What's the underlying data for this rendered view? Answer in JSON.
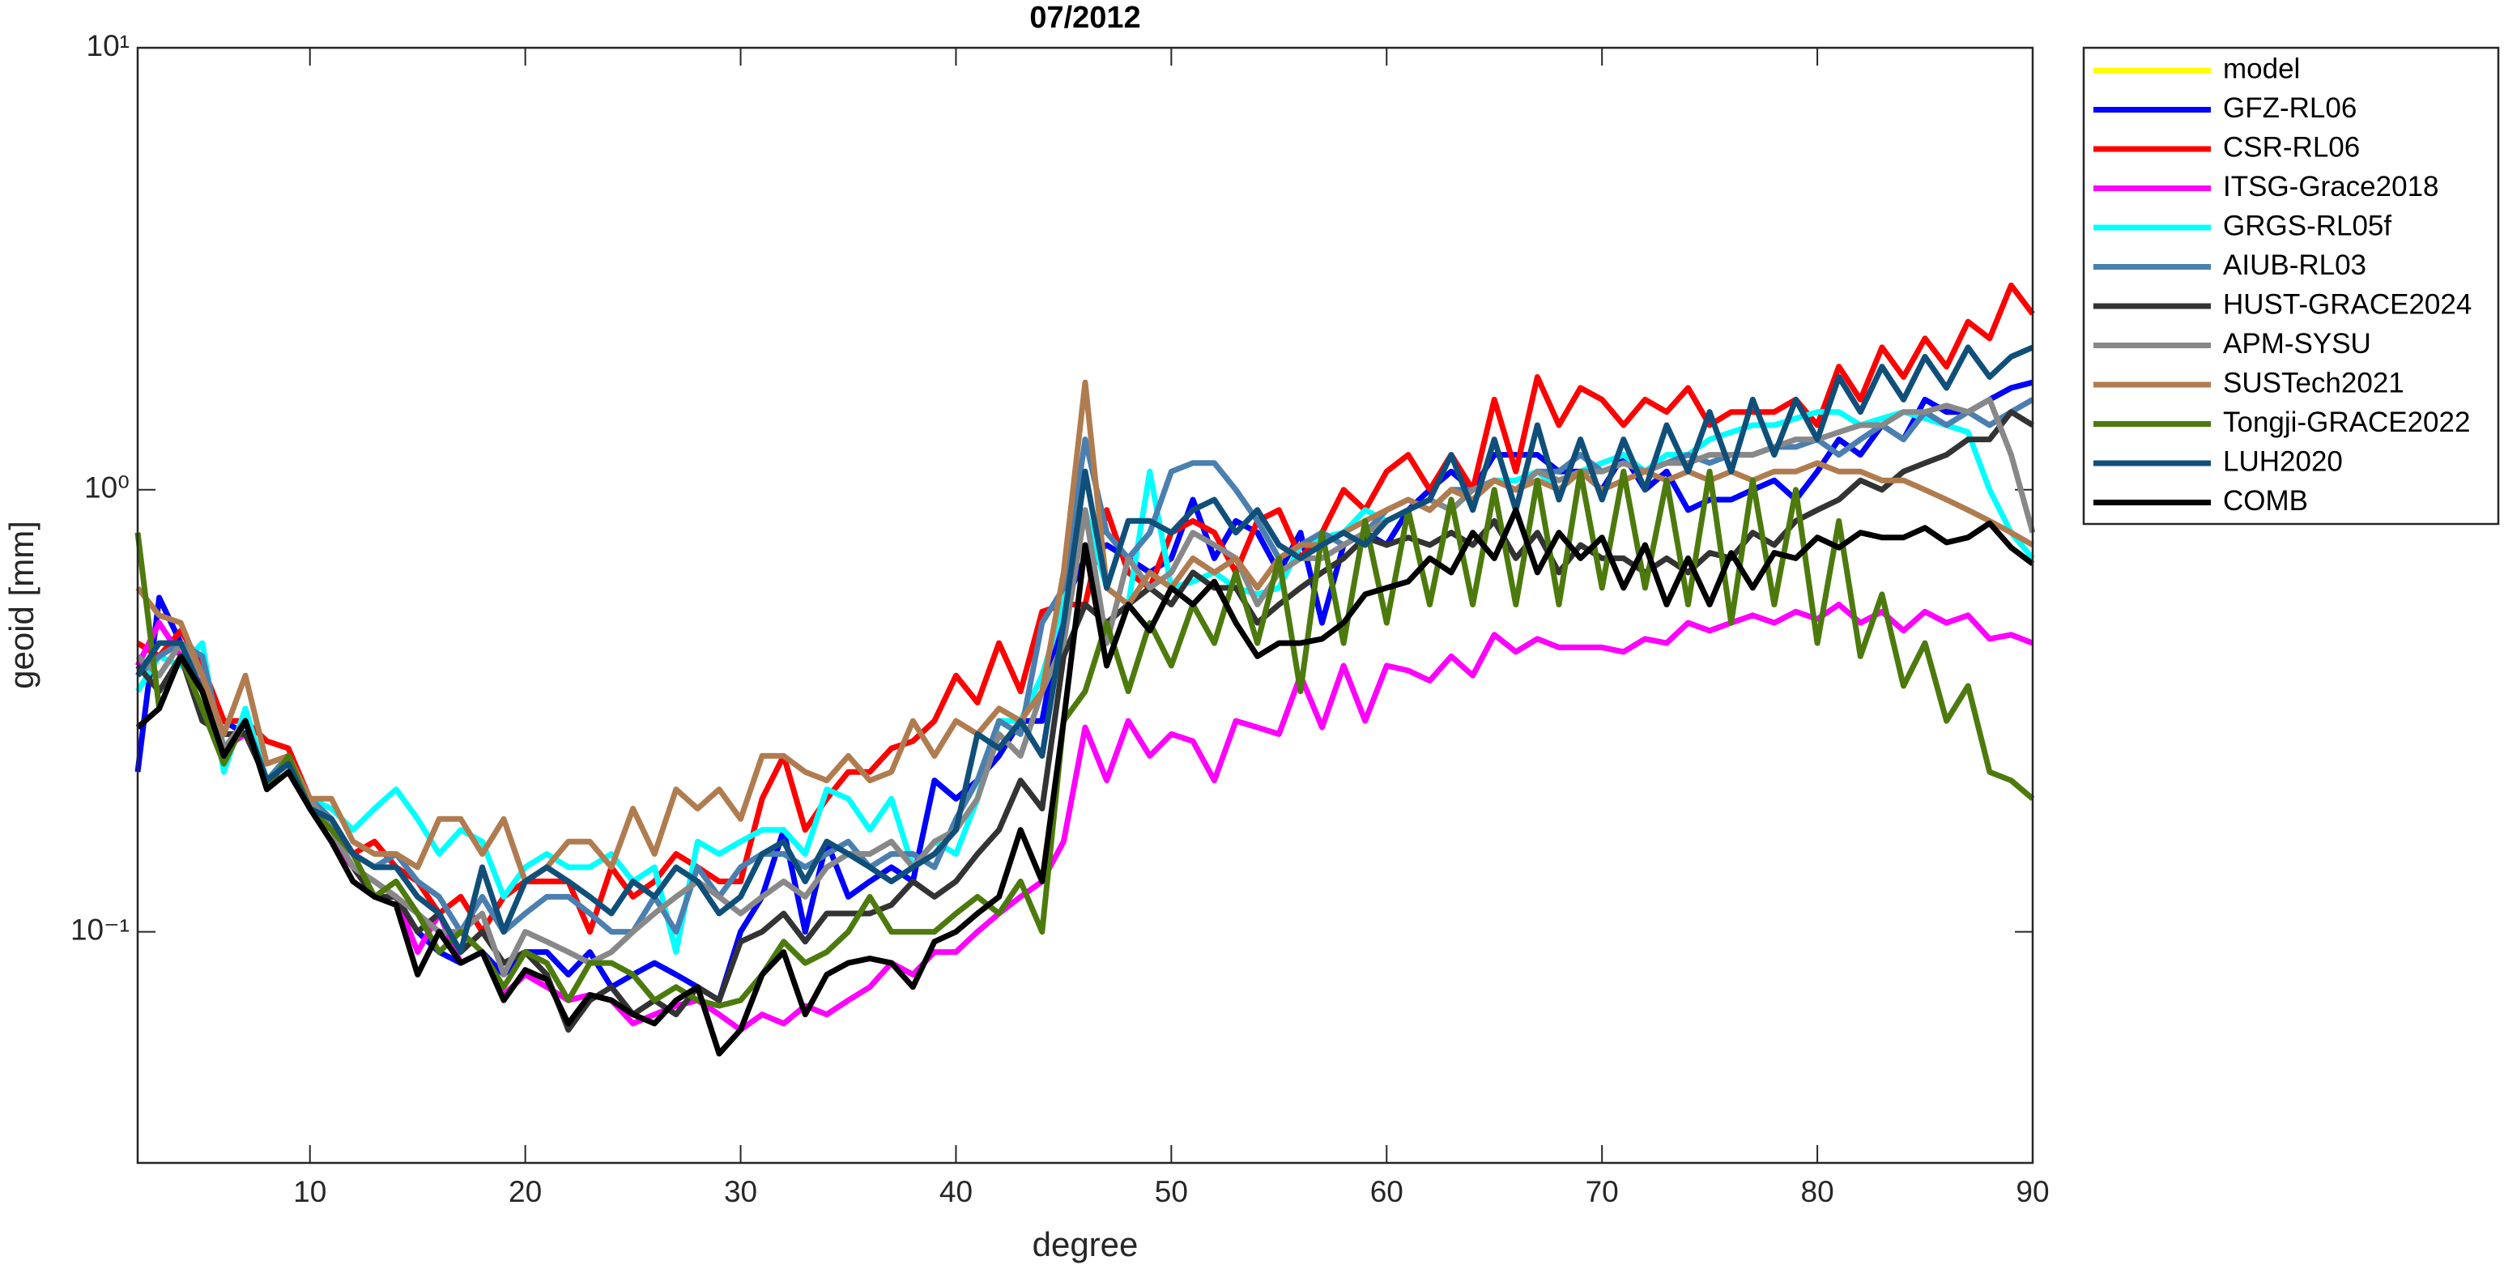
{
  "chart_data": {
    "type": "line",
    "title": "07/2012",
    "xlabel": "degree",
    "ylabel": "geoid [mm]",
    "log_y": true,
    "grid": false,
    "legend": "outside-right-top",
    "xlim": [
      2,
      90
    ],
    "xticks": [
      10,
      20,
      30,
      40,
      50,
      60,
      70,
      80,
      90
    ],
    "ylim": [
      0.03,
      10
    ],
    "yticks": [
      {
        "value": 0.1,
        "label": "10⁻¹"
      },
      {
        "value": 1,
        "label": "10⁰"
      },
      {
        "value": 10,
        "label": "10¹"
      }
    ],
    "x": [
      2,
      3,
      4,
      5,
      6,
      7,
      8,
      9,
      10,
      11,
      12,
      13,
      14,
      15,
      16,
      17,
      18,
      19,
      20,
      21,
      22,
      23,
      24,
      25,
      26,
      27,
      28,
      29,
      30,
      31,
      32,
      33,
      34,
      35,
      36,
      37,
      38,
      39,
      40,
      41,
      42,
      43,
      44,
      45,
      46,
      47,
      48,
      49,
      50,
      51,
      52,
      53,
      54,
      55,
      56,
      57,
      58,
      59,
      60,
      61,
      62,
      63,
      64,
      65,
      66,
      67,
      68,
      69,
      70,
      71,
      72,
      73,
      74,
      75,
      76,
      77,
      78,
      79,
      80,
      81,
      82,
      83,
      84,
      85,
      86,
      87,
      88,
      89,
      90
    ],
    "series": [
      {
        "name": "model",
        "color": "#ffff00",
        "values": [
          null,
          null,
          null,
          null,
          null,
          null,
          null,
          null,
          null,
          null,
          null,
          null,
          null,
          null,
          null,
          null,
          null,
          null,
          null,
          null,
          null,
          null,
          null,
          null,
          null,
          null,
          null,
          null,
          null,
          null,
          null,
          null,
          null,
          null,
          null,
          null,
          null,
          null,
          null,
          null,
          null,
          null,
          null,
          null,
          null,
          null,
          null,
          null,
          null,
          null,
          null,
          null,
          null,
          null,
          null,
          null,
          null,
          null,
          null,
          null,
          null,
          null,
          null,
          null,
          null,
          null,
          null,
          null,
          null,
          null,
          null,
          null,
          null,
          null,
          null,
          null,
          null,
          null,
          null,
          null,
          null,
          null,
          null,
          null,
          null,
          null,
          null,
          null,
          null
        ]
      },
      {
        "name": "GFZ-RL06",
        "color": "#0000ff",
        "values": [
          0.23,
          0.57,
          0.45,
          0.38,
          0.3,
          0.28,
          0.22,
          0.24,
          0.2,
          0.17,
          0.14,
          0.13,
          0.12,
          0.1,
          0.09,
          0.085,
          0.09,
          0.08,
          0.09,
          0.09,
          0.08,
          0.09,
          0.075,
          0.08,
          0.085,
          0.08,
          0.075,
          0.07,
          0.1,
          0.12,
          0.17,
          0.1,
          0.16,
          0.12,
          0.13,
          0.14,
          0.13,
          0.22,
          0.2,
          0.22,
          0.25,
          0.3,
          0.3,
          0.55,
          0.7,
          0.75,
          0.7,
          0.65,
          0.7,
          0.95,
          0.7,
          0.85,
          0.8,
          0.65,
          0.8,
          0.5,
          0.75,
          0.8,
          0.75,
          0.9,
          1.0,
          1.1,
          1.0,
          1.2,
          1.2,
          1.2,
          1.1,
          1.1,
          1.0,
          1.2,
          1.0,
          1.1,
          0.9,
          0.95,
          0.95,
          1.0,
          1.05,
          0.95,
          1.1,
          1.3,
          1.2,
          1.4,
          1.3,
          1.6,
          1.5,
          1.5,
          1.6,
          1.7,
          1.75
        ]
      },
      {
        "name": "CSR-RL06",
        "color": "#ff0000",
        "values": [
          0.45,
          0.42,
          0.48,
          0.4,
          0.3,
          0.3,
          0.27,
          0.26,
          0.2,
          0.18,
          0.15,
          0.16,
          0.14,
          0.13,
          0.11,
          0.12,
          0.1,
          0.12,
          0.13,
          0.13,
          0.13,
          0.1,
          0.14,
          0.12,
          0.13,
          0.15,
          0.14,
          0.13,
          0.13,
          0.2,
          0.25,
          0.17,
          0.2,
          0.23,
          0.23,
          0.26,
          0.27,
          0.3,
          0.38,
          0.33,
          0.45,
          0.35,
          0.53,
          0.55,
          0.55,
          0.9,
          0.65,
          0.6,
          0.8,
          0.85,
          0.8,
          0.65,
          0.85,
          0.9,
          0.7,
          0.8,
          1.0,
          0.9,
          1.1,
          1.2,
          1.0,
          1.2,
          1.0,
          1.6,
          1.1,
          1.8,
          1.4,
          1.7,
          1.6,
          1.4,
          1.6,
          1.5,
          1.7,
          1.4,
          1.5,
          1.5,
          1.5,
          1.6,
          1.4,
          1.9,
          1.6,
          2.1,
          1.8,
          2.2,
          1.9,
          2.4,
          2.2,
          2.9,
          2.5
        ]
      },
      {
        "name": "ITSG-Grace2018",
        "color": "#ff00ff",
        "values": [
          0.4,
          0.5,
          0.42,
          0.36,
          0.26,
          0.28,
          0.22,
          0.24,
          0.19,
          0.16,
          0.14,
          0.12,
          0.12,
          0.09,
          0.11,
          0.085,
          0.09,
          0.072,
          0.08,
          0.075,
          0.07,
          0.072,
          0.07,
          0.062,
          0.065,
          0.068,
          0.07,
          0.065,
          0.06,
          0.065,
          0.062,
          0.068,
          0.065,
          0.07,
          0.075,
          0.085,
          0.08,
          0.09,
          0.09,
          0.1,
          0.11,
          0.12,
          0.13,
          0.16,
          0.29,
          0.22,
          0.3,
          0.25,
          0.28,
          0.27,
          0.22,
          0.3,
          0.29,
          0.28,
          0.38,
          0.29,
          0.4,
          0.3,
          0.4,
          0.39,
          0.37,
          0.42,
          0.38,
          0.47,
          0.43,
          0.46,
          0.44,
          0.44,
          0.44,
          0.43,
          0.46,
          0.45,
          0.5,
          0.48,
          0.5,
          0.52,
          0.5,
          0.53,
          0.51,
          0.55,
          0.5,
          0.53,
          0.48,
          0.53,
          0.5,
          0.52,
          0.46,
          0.47,
          0.45
        ]
      },
      {
        "name": "GRGS-RL05f",
        "color": "#00ffff",
        "values": [
          0.35,
          0.42,
          0.4,
          0.45,
          0.23,
          0.32,
          0.22,
          0.25,
          0.2,
          0.19,
          0.17,
          0.19,
          0.21,
          0.18,
          0.15,
          0.17,
          0.16,
          0.12,
          0.14,
          0.15,
          0.14,
          0.14,
          0.15,
          0.13,
          0.14,
          0.09,
          0.16,
          0.15,
          0.16,
          0.17,
          0.17,
          0.15,
          0.21,
          0.2,
          0.17,
          0.2,
          0.14,
          0.16,
          0.15,
          0.2,
          0.3,
          0.3,
          0.38,
          0.55,
          0.9,
          0.6,
          0.55,
          1.1,
          0.6,
          0.62,
          0.65,
          0.6,
          0.58,
          0.6,
          0.75,
          0.78,
          0.8,
          0.9,
          0.85,
          0.9,
          0.95,
          0.9,
          1.0,
          1.05,
          1.05,
          1.1,
          1.0,
          1.1,
          1.15,
          1.2,
          1.1,
          1.2,
          1.2,
          1.3,
          1.35,
          1.4,
          1.4,
          1.45,
          1.5,
          1.5,
          1.4,
          1.45,
          1.5,
          1.45,
          1.4,
          1.35,
          1.0,
          0.8,
          0.7
        ]
      },
      {
        "name": "AIUB-RL03",
        "color": "#4a7fb0",
        "values": [
          0.38,
          0.42,
          0.45,
          0.42,
          0.26,
          0.3,
          0.22,
          0.25,
          0.2,
          0.18,
          0.15,
          0.14,
          0.15,
          0.13,
          0.12,
          0.1,
          0.12,
          0.1,
          0.11,
          0.12,
          0.12,
          0.11,
          0.1,
          0.1,
          0.12,
          0.1,
          0.14,
          0.12,
          0.14,
          0.15,
          0.15,
          0.14,
          0.15,
          0.16,
          0.14,
          0.15,
          0.15,
          0.14,
          0.18,
          0.22,
          0.3,
          0.28,
          0.5,
          0.6,
          1.3,
          0.8,
          0.7,
          0.8,
          1.1,
          1.15,
          1.15,
          1.0,
          0.85,
          0.7,
          0.75,
          0.8,
          0.75,
          0.8,
          0.9,
          0.95,
          0.9,
          1.0,
          1.0,
          1.05,
          1.0,
          1.1,
          1.1,
          1.2,
          1.1,
          1.15,
          1.1,
          1.15,
          1.2,
          1.15,
          1.2,
          1.2,
          1.25,
          1.25,
          1.3,
          1.2,
          1.3,
          1.4,
          1.3,
          1.5,
          1.4,
          1.5,
          1.4,
          1.5,
          1.6
        ]
      },
      {
        "name": "HUST-GRACE2024",
        "color": "#333333",
        "values": [
          0.4,
          0.35,
          0.42,
          0.3,
          0.28,
          0.28,
          0.22,
          0.24,
          0.19,
          0.17,
          0.14,
          0.12,
          0.12,
          0.1,
          0.11,
          0.09,
          0.1,
          0.085,
          0.09,
          0.08,
          0.06,
          0.07,
          0.075,
          0.065,
          0.07,
          0.065,
          0.075,
          0.07,
          0.095,
          0.1,
          0.11,
          0.095,
          0.11,
          0.11,
          0.11,
          0.115,
          0.13,
          0.12,
          0.13,
          0.15,
          0.17,
          0.22,
          0.19,
          0.42,
          0.55,
          0.5,
          0.55,
          0.6,
          0.55,
          0.65,
          0.6,
          0.6,
          0.5,
          0.55,
          0.6,
          0.65,
          0.7,
          0.78,
          0.75,
          0.78,
          0.75,
          0.8,
          0.75,
          0.85,
          0.7,
          0.8,
          0.65,
          0.75,
          0.7,
          0.7,
          0.65,
          0.7,
          0.65,
          0.72,
          0.7,
          0.8,
          0.75,
          0.85,
          0.9,
          0.95,
          1.05,
          1.0,
          1.1,
          1.15,
          1.2,
          1.3,
          1.3,
          1.5,
          1.4
        ]
      },
      {
        "name": "APM-SYSU",
        "color": "#888888",
        "values": [
          0.42,
          0.38,
          0.45,
          0.38,
          0.26,
          0.3,
          0.22,
          0.24,
          0.2,
          0.17,
          0.14,
          0.13,
          0.12,
          0.11,
          0.1,
          0.1,
          0.11,
          0.08,
          0.1,
          0.095,
          0.09,
          0.085,
          0.09,
          0.1,
          0.11,
          0.12,
          0.13,
          0.12,
          0.11,
          0.12,
          0.13,
          0.12,
          0.14,
          0.15,
          0.15,
          0.16,
          0.14,
          0.16,
          0.17,
          0.2,
          0.28,
          0.25,
          0.35,
          0.45,
          0.9,
          0.45,
          0.7,
          0.6,
          0.65,
          0.8,
          0.75,
          0.7,
          0.55,
          0.65,
          0.7,
          0.7,
          0.75,
          0.8,
          0.85,
          0.9,
          0.95,
          0.9,
          1.0,
          1.05,
          1.0,
          1.1,
          1.05,
          1.1,
          1.1,
          1.15,
          1.1,
          1.15,
          1.15,
          1.2,
          1.2,
          1.2,
          1.25,
          1.3,
          1.3,
          1.35,
          1.4,
          1.4,
          1.5,
          1.5,
          1.55,
          1.5,
          1.6,
          1.2,
          0.8
        ]
      },
      {
        "name": "SUSTech2021",
        "color": "#b07c4f",
        "values": [
          0.6,
          0.52,
          0.5,
          0.38,
          0.28,
          0.38,
          0.24,
          0.25,
          0.2,
          0.2,
          0.16,
          0.15,
          0.15,
          0.14,
          0.18,
          0.18,
          0.15,
          0.18,
          0.13,
          0.14,
          0.16,
          0.16,
          0.14,
          0.19,
          0.15,
          0.21,
          0.19,
          0.21,
          0.18,
          0.25,
          0.25,
          0.23,
          0.22,
          0.25,
          0.22,
          0.23,
          0.3,
          0.25,
          0.3,
          0.28,
          0.32,
          0.3,
          0.35,
          0.65,
          1.75,
          0.6,
          0.55,
          0.65,
          0.6,
          0.7,
          0.65,
          0.7,
          0.6,
          0.7,
          0.75,
          0.75,
          0.8,
          0.85,
          0.9,
          0.95,
          0.9,
          1.0,
          0.95,
          1.05,
          1.0,
          1.05,
          1.0,
          1.1,
          1.0,
          1.05,
          1.1,
          1.05,
          1.1,
          1.05,
          1.1,
          1.05,
          1.1,
          1.1,
          1.15,
          1.1,
          1.1,
          1.05,
          1.05,
          1.0,
          0.95,
          0.9,
          0.85,
          0.8,
          0.75
        ]
      },
      {
        "name": "Tongji-GRACE2022",
        "color": "#4d7a0d",
        "values": [
          0.8,
          0.32,
          0.42,
          0.32,
          0.24,
          0.3,
          0.21,
          0.25,
          0.19,
          0.17,
          0.15,
          0.12,
          0.13,
          0.11,
          0.09,
          0.1,
          0.09,
          0.075,
          0.09,
          0.085,
          0.07,
          0.085,
          0.085,
          0.08,
          0.07,
          0.075,
          0.07,
          0.068,
          0.07,
          0.08,
          0.095,
          0.085,
          0.09,
          0.1,
          0.12,
          0.1,
          0.1,
          0.1,
          0.11,
          0.12,
          0.11,
          0.13,
          0.1,
          0.3,
          0.35,
          0.5,
          0.35,
          0.5,
          0.4,
          0.55,
          0.45,
          0.65,
          0.45,
          0.7,
          0.35,
          0.8,
          0.45,
          0.85,
          0.5,
          0.9,
          0.55,
          0.95,
          0.55,
          1.0,
          0.55,
          1.05,
          0.55,
          1.1,
          0.6,
          1.1,
          0.6,
          1.05,
          0.55,
          1.1,
          0.5,
          1.05,
          0.55,
          1.0,
          0.45,
          0.85,
          0.42,
          0.58,
          0.36,
          0.45,
          0.3,
          0.36,
          0.23,
          0.22,
          0.2
        ]
      },
      {
        "name": "LUH2020",
        "color": "#0f4f7a",
        "values": [
          0.38,
          0.45,
          0.45,
          0.35,
          0.25,
          0.3,
          0.22,
          0.24,
          0.19,
          0.18,
          0.15,
          0.14,
          0.14,
          0.12,
          0.11,
          0.09,
          0.14,
          0.1,
          0.13,
          0.14,
          0.13,
          0.12,
          0.11,
          0.13,
          0.12,
          0.14,
          0.13,
          0.11,
          0.12,
          0.15,
          0.16,
          0.13,
          0.16,
          0.15,
          0.14,
          0.13,
          0.14,
          0.15,
          0.17,
          0.28,
          0.26,
          0.3,
          0.25,
          0.5,
          1.1,
          0.6,
          0.85,
          0.85,
          0.8,
          0.9,
          0.95,
          0.8,
          0.9,
          0.75,
          0.7,
          0.75,
          0.8,
          0.75,
          0.85,
          0.9,
          0.95,
          1.2,
          0.9,
          1.3,
          0.9,
          1.4,
          0.95,
          1.3,
          0.95,
          1.3,
          1.0,
          1.4,
          1.1,
          1.5,
          1.1,
          1.6,
          1.2,
          1.6,
          1.3,
          1.8,
          1.5,
          1.9,
          1.6,
          2.0,
          1.7,
          2.1,
          1.8,
          2.0,
          2.1
        ]
      },
      {
        "name": "COMB",
        "color": "#000000",
        "values": [
          0.29,
          0.32,
          0.42,
          0.35,
          0.25,
          0.3,
          0.21,
          0.23,
          0.19,
          0.16,
          0.13,
          0.12,
          0.115,
          0.08,
          0.1,
          0.085,
          0.09,
          0.07,
          0.082,
          0.078,
          0.062,
          0.072,
          0.07,
          0.065,
          0.062,
          0.07,
          0.075,
          0.053,
          0.06,
          0.08,
          0.09,
          0.065,
          0.08,
          0.085,
          0.087,
          0.085,
          0.075,
          0.095,
          0.1,
          0.11,
          0.12,
          0.17,
          0.13,
          0.3,
          0.75,
          0.4,
          0.55,
          0.48,
          0.6,
          0.55,
          0.62,
          0.5,
          0.42,
          0.45,
          0.45,
          0.46,
          0.5,
          0.58,
          0.6,
          0.62,
          0.7,
          0.65,
          0.8,
          0.7,
          0.9,
          0.65,
          0.8,
          0.7,
          0.78,
          0.6,
          0.75,
          0.55,
          0.7,
          0.55,
          0.72,
          0.6,
          0.72,
          0.7,
          0.78,
          0.74,
          0.8,
          0.78,
          0.78,
          0.82,
          0.76,
          0.78,
          0.84,
          0.74,
          0.68
        ]
      }
    ]
  }
}
